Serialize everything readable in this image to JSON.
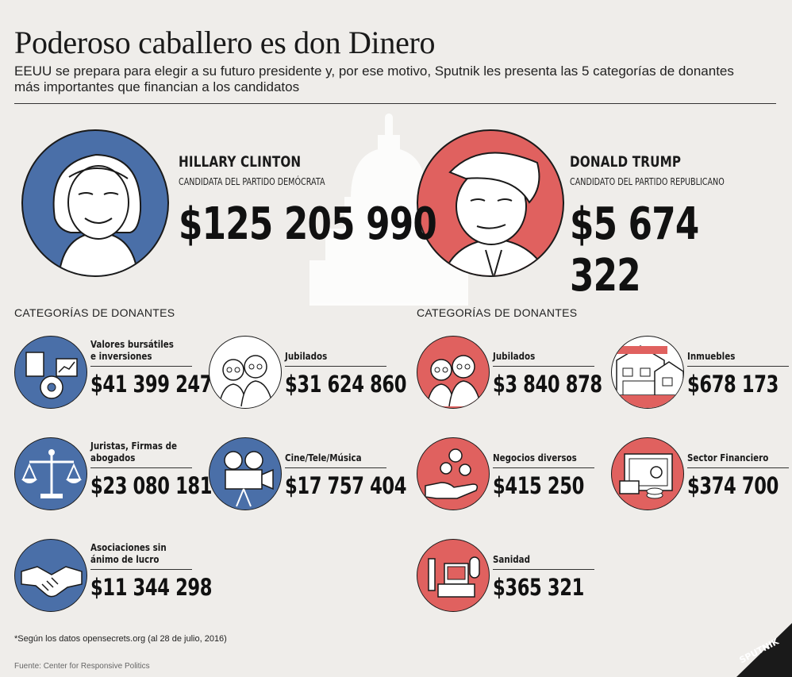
{
  "title": "Poderoso caballero es don Dinero",
  "subtitle": "EEUU se prepara para elegir a su futuro presidente y, por ese motivo, Sputnik les presenta las 5 categorías de donantes más importantes que financian a los candidatos",
  "candidates": [
    {
      "name": "HILLARY CLINTON",
      "role": "CANDIDATA DEL PARTIDO DEMÓCRATA",
      "total": "$125 205 990",
      "color": "#4a6fa8"
    },
    {
      "name": "DONALD TRUMP",
      "role": "CANDIDATO DEL PARTIDO REPUBLICANO",
      "total": "$5 674 322",
      "color": "#e0615f"
    }
  ],
  "categories_heading": "CATEGORÍAS DE DONANTES",
  "clinton_donors": [
    {
      "label": "Valores bursátiles e inversiones",
      "amount": "$41 399 247",
      "icon": "stock-chart-icon"
    },
    {
      "label": "Jubilados",
      "amount": "$31 624 860",
      "icon": "retirees-icon"
    },
    {
      "label": "Juristas, Firmas de abogados",
      "amount": "$23 080 181",
      "icon": "scales-icon"
    },
    {
      "label": "Cine/Tele/Música",
      "amount": "$17 757 404",
      "icon": "film-camera-icon"
    },
    {
      "label": "Asociaciones sin ánimo de lucro",
      "amount": "$11 344 298",
      "icon": "handshake-icon"
    }
  ],
  "trump_donors": [
    {
      "label": "Jubilados",
      "amount": "$3 840 878",
      "icon": "retirees-icon"
    },
    {
      "label": "Inmuebles",
      "amount": "$678 173",
      "icon": "houses-icon"
    },
    {
      "label": "Negocios diversos",
      "amount": "$415 250",
      "icon": "money-hand-icon"
    },
    {
      "label": "Sector Financiero",
      "amount": "$374 700",
      "icon": "safe-icon"
    },
    {
      "label": "Sanidad",
      "amount": "$365 321",
      "icon": "medical-icon"
    }
  ],
  "footnote": "*Según los datos opensecrets.org (al 28 de julio, 2016)",
  "source": "Fuente: Center for Responsive Politics",
  "logo_text": "SPUTNIK"
}
